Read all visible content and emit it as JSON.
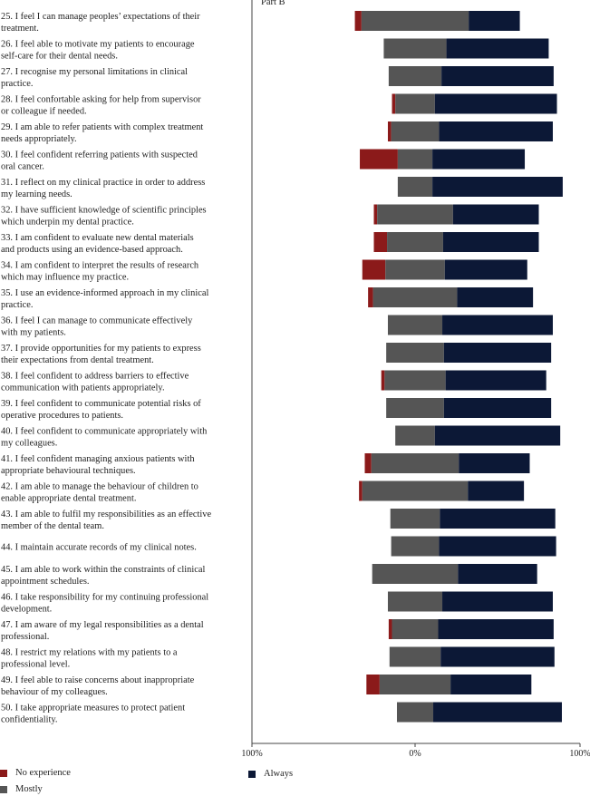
{
  "chart_data": {
    "type": "bar",
    "subtype": "diverging-stacked-horizontal",
    "title": "Part B",
    "x_ticks": [
      "100%",
      "0%",
      "100%"
    ],
    "xlim": [
      -100,
      100
    ],
    "series": [
      {
        "name": "No experience",
        "color": "#8b1a1a"
      },
      {
        "name": "Mostly",
        "color": "#555555"
      },
      {
        "name": "Always",
        "color": "#0c1836"
      }
    ],
    "categories": [
      [
        "25. I feel I can manage peoples’ expectations of their",
        "treatment."
      ],
      [
        "26. I feel able to motivate my patients to encourage",
        "self-care for their dental needs."
      ],
      [
        "27. I recognise my personal limitations in clinical",
        "practice."
      ],
      [
        "28. I feel confortable asking for help from supervisor",
        "or colleague if needed."
      ],
      [
        "29. I am able to refer patients with complex treatment",
        "needs appropriately."
      ],
      [
        "30. I feel confident referring patients with suspected",
        "oral cancer."
      ],
      [
        "31. I reflect on my clinical practice in order to address",
        "my learning needs."
      ],
      [
        "32. I have sufficient knowledge of scientific principles",
        "which underpin my dental practice."
      ],
      [
        "33. I am confident to evaluate new dental materials",
        "and products using an evidence-based approach."
      ],
      [
        "34. I am confident to interpret the results of research",
        "which may influence my practice."
      ],
      [
        "35. I use an evidence-informed approach in my clinical",
        "practice."
      ],
      [
        "36. I feel I can manage to communicate effectively",
        "with my patients."
      ],
      [
        "37. I provide opportunities for my patients to express",
        "their expectations from dental treatment."
      ],
      [
        "38. I feel confident to address barriers to effective",
        "communication with patients appropriately."
      ],
      [
        "39. I feel confident to communicate potential risks of",
        "operative procedures to patients."
      ],
      [
        "40. I feel confident to communicate appropriately with",
        "my colleagues."
      ],
      [
        "41. I feel confident managing anxious patients with",
        "appropriate behavioural techniques."
      ],
      [
        "42. I am able to manage the behaviour of children to",
        "enable appropriate dental treatment."
      ],
      [
        "43. I am able to fulfil my responsibilities as an effective",
        "member of the dental team."
      ],
      [
        "44. I maintain accurate records of my clinical notes."
      ],
      [
        "45. I am able to work within the constraints of clinical",
        "appointment schedules."
      ],
      [
        "46. I take responsibility for my continuing professional",
        "development."
      ],
      [
        "47. I am aware of my legal responsibilities as a dental",
        "professional."
      ],
      [
        "48. I restrict my relations with my patients to a",
        "professional level."
      ],
      [
        "49. I feel able to raise concerns about inappropriate",
        "behaviour of my colleagues."
      ],
      [
        "50. I take appropriate measures to protect patient",
        "confidentiality."
      ]
    ],
    "values": {
      "No experience": [
        4,
        0,
        0,
        2,
        2,
        23,
        0,
        2,
        8,
        14,
        3,
        0,
        0,
        2,
        0,
        0,
        4,
        2,
        0,
        0,
        0,
        0,
        2,
        0,
        8,
        0
      ],
      "Mostly": [
        65,
        38,
        32,
        24,
        29,
        21,
        21,
        46,
        34,
        36,
        51,
        33,
        35,
        37,
        35,
        24,
        53,
        64,
        30,
        29,
        52,
        33,
        28,
        31,
        43,
        22
      ],
      "Always": [
        31,
        62,
        68,
        74,
        69,
        56,
        79,
        52,
        58,
        50,
        46,
        67,
        65,
        61,
        65,
        76,
        43,
        34,
        70,
        71,
        48,
        67,
        70,
        69,
        49,
        78
      ]
    }
  }
}
